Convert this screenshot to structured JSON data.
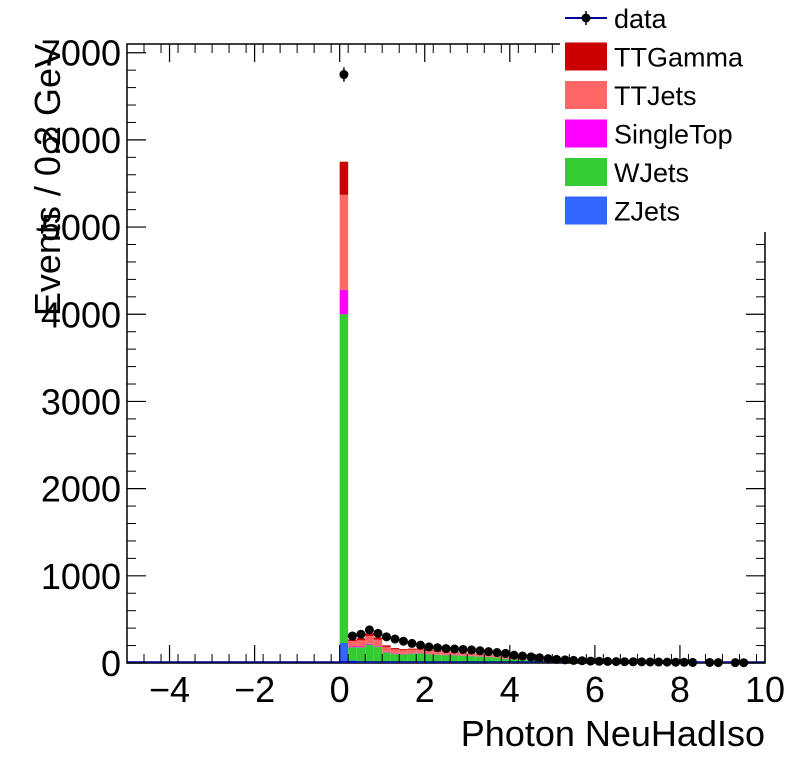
{
  "chart_data": {
    "type": "bar",
    "stacked": true,
    "xlabel": "Photon NeuHadIso",
    "ylabel": "Events / 0.2 GeV",
    "xlim": [
      -5,
      10
    ],
    "ylim": [
      0,
      7100
    ],
    "bin_width": 0.2,
    "x_ticks": [
      -4,
      -2,
      0,
      2,
      4,
      6,
      8,
      10
    ],
    "x_tick_labels": [
      "−4",
      "−2",
      "0",
      "2",
      "4",
      "6",
      "8",
      "10"
    ],
    "y_ticks": [
      0,
      1000,
      2000,
      3000,
      4000,
      5000,
      6000,
      7000
    ],
    "y_tick_labels": [
      "0",
      "1000",
      "2000",
      "3000",
      "4000",
      "5000",
      "6000",
      "7000"
    ],
    "grid": false,
    "legend_position": "top-right",
    "x": [
      0.1,
      0.3,
      0.5,
      0.7,
      0.9,
      1.1,
      1.3,
      1.5,
      1.7,
      1.9,
      2.1,
      2.3,
      2.5,
      2.7,
      2.9,
      3.1,
      3.3,
      3.5,
      3.7,
      3.9,
      4.1,
      4.3,
      4.5,
      4.7,
      4.9,
      5.1,
      5.3,
      5.5,
      5.7,
      5.9,
      6.1,
      6.3,
      6.5,
      6.7,
      6.9,
      7.1,
      7.3,
      7.5,
      7.7,
      7.9,
      8.1,
      8.3,
      8.5,
      8.7,
      8.9,
      9.1,
      9.3,
      9.5,
      9.7,
      9.9
    ],
    "series": [
      {
        "name": "ZJets",
        "color": "#3366ff",
        "values": [
          230,
          30,
          20,
          20,
          15,
          12,
          10,
          9,
          8,
          7,
          6,
          5,
          5,
          4,
          4,
          4,
          3,
          3,
          3,
          2,
          2,
          2,
          2,
          2,
          1,
          1,
          1,
          1,
          1,
          1,
          1,
          1,
          1,
          1,
          1,
          1,
          1,
          1,
          1,
          1,
          1,
          1,
          1,
          1,
          0,
          0,
          0,
          0,
          0,
          0
        ]
      },
      {
        "name": "WJets",
        "color": "#33cc33",
        "values": [
          3770,
          150,
          160,
          190,
          170,
          110,
          95,
          90,
          100,
          105,
          95,
          90,
          85,
          85,
          80,
          75,
          70,
          65,
          60,
          45,
          40,
          35,
          30,
          25,
          20,
          17,
          15,
          13,
          11,
          10,
          9,
          8,
          7,
          6,
          5,
          5,
          4,
          4,
          3,
          3,
          3,
          2,
          2,
          2,
          2,
          1,
          1,
          1,
          1,
          1
        ]
      },
      {
        "name": "SingleTop",
        "color": "#ff00ff",
        "values": [
          280,
          10,
          10,
          10,
          8,
          7,
          6,
          5,
          5,
          5,
          4,
          4,
          4,
          4,
          3,
          3,
          3,
          3,
          2,
          2,
          2,
          2,
          1,
          1,
          1,
          1,
          1,
          1,
          1,
          1,
          1,
          0,
          0,
          0,
          0,
          0,
          0,
          0,
          0,
          0,
          0,
          0,
          0,
          0,
          0,
          0,
          0,
          0,
          0,
          0
        ]
      },
      {
        "name": "TTJets",
        "color": "#ff6666",
        "values": [
          1090,
          60,
          70,
          90,
          75,
          55,
          45,
          42,
          40,
          38,
          35,
          33,
          30,
          28,
          26,
          24,
          22,
          20,
          18,
          15,
          13,
          11,
          10,
          9,
          8,
          7,
          6,
          5,
          5,
          4,
          4,
          3,
          3,
          3,
          2,
          2,
          2,
          2,
          2,
          1,
          1,
          1,
          1,
          1,
          1,
          1,
          1,
          1,
          0,
          0
        ]
      },
      {
        "name": "TTGamma",
        "color": "#cc0000",
        "values": [
          380,
          20,
          25,
          30,
          25,
          18,
          15,
          13,
          12,
          11,
          10,
          9,
          8,
          7,
          6,
          6,
          5,
          5,
          4,
          4,
          3,
          3,
          3,
          2,
          2,
          2,
          2,
          1,
          1,
          1,
          1,
          1,
          1,
          1,
          1,
          0,
          0,
          0,
          0,
          0,
          0,
          0,
          0,
          0,
          0,
          0,
          0,
          0,
          0,
          0
        ]
      }
    ],
    "data": {
      "name": "data",
      "color": "#000000",
      "line_color": "#000099",
      "x": [
        0.1,
        0.3,
        0.5,
        0.7,
        0.9,
        1.1,
        1.3,
        1.5,
        1.7,
        1.9,
        2.1,
        2.3,
        2.5,
        2.7,
        2.9,
        3.1,
        3.3,
        3.5,
        3.7,
        3.9,
        4.1,
        4.3,
        4.5,
        4.7,
        4.9,
        5.1,
        5.3,
        5.5,
        5.7,
        5.9,
        6.1,
        6.3,
        6.5,
        6.7,
        6.9,
        7.1,
        7.3,
        7.5,
        7.7,
        7.9,
        8.1,
        8.3,
        8.7,
        8.9,
        9.3,
        9.5
      ],
      "values": [
        6750,
        310,
        330,
        380,
        340,
        300,
        275,
        250,
        225,
        205,
        185,
        175,
        165,
        160,
        155,
        150,
        140,
        130,
        120,
        110,
        90,
        80,
        70,
        60,
        50,
        42,
        36,
        30,
        26,
        22,
        20,
        18,
        16,
        15,
        14,
        13,
        12,
        11,
        10,
        9,
        8,
        7,
        6,
        5,
        4,
        3
      ],
      "errors": [
        82,
        18,
        18,
        19,
        18,
        17,
        17,
        16,
        15,
        14,
        14,
        13,
        13,
        13,
        12,
        12,
        12,
        11,
        11,
        10,
        9,
        9,
        8,
        8,
        7,
        6,
        6,
        5,
        5,
        5,
        4,
        4,
        4,
        4,
        4,
        4,
        3,
        3,
        3,
        3,
        3,
        3,
        2,
        2,
        2,
        2
      ]
    },
    "legend": [
      "data",
      "TTGamma",
      "TTJets",
      "SingleTop",
      "WJets",
      "ZJets"
    ]
  }
}
